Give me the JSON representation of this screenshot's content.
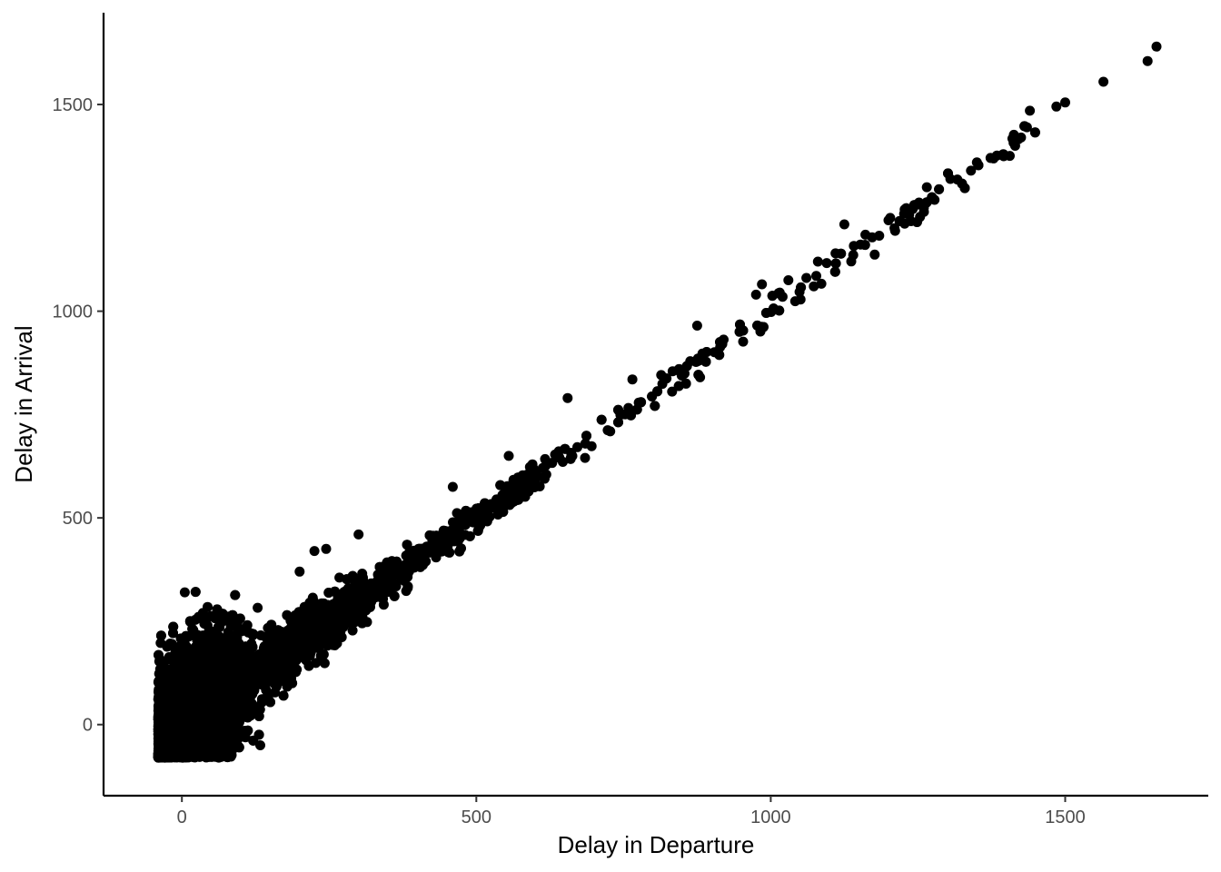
{
  "chart_data": {
    "type": "scatter",
    "title": "",
    "xlabel": "Delay in Departure",
    "ylabel": "Delay in Arrival",
    "xlim": [
      -133,
      1743
    ],
    "ylim": [
      -172,
      1722
    ],
    "x_ticks": [
      0,
      500,
      1000,
      1500
    ],
    "y_ticks": [
      0,
      500,
      1000,
      1500
    ],
    "x_tick_labels": [
      "0",
      "500",
      "1000",
      "1500"
    ],
    "y_tick_labels": [
      "0",
      "500",
      "1000",
      "1500"
    ],
    "grid": false,
    "legend": "none",
    "point_color": "#000000",
    "point_count_approx": 6000,
    "trend": {
      "slope": 1.0,
      "intercept": -5
    },
    "cluster_range_x": [
      -40,
      500
    ],
    "notable_points": [
      {
        "x": 1640,
        "y": 1605
      },
      {
        "x": 1655,
        "y": 1640
      },
      {
        "x": 1565,
        "y": 1555
      },
      {
        "x": 1500,
        "y": 1505
      },
      {
        "x": 1485,
        "y": 1495
      },
      {
        "x": 1440,
        "y": 1485
      },
      {
        "x": 1435,
        "y": 1445
      },
      {
        "x": 1425,
        "y": 1420
      },
      {
        "x": 1415,
        "y": 1400
      },
      {
        "x": 1395,
        "y": 1380
      },
      {
        "x": 1350,
        "y": 1360
      },
      {
        "x": 1340,
        "y": 1340
      },
      {
        "x": 1305,
        "y": 1320
      },
      {
        "x": 1265,
        "y": 1300
      },
      {
        "x": 1260,
        "y": 1250
      },
      {
        "x": 1230,
        "y": 1245
      },
      {
        "x": 1200,
        "y": 1220
      },
      {
        "x": 1125,
        "y": 1210
      },
      {
        "x": 1110,
        "y": 1140
      },
      {
        "x": 1080,
        "y": 1120
      },
      {
        "x": 1030,
        "y": 1075
      },
      {
        "x": 985,
        "y": 1065
      },
      {
        "x": 975,
        "y": 1040
      },
      {
        "x": 1020,
        "y": 1035
      },
      {
        "x": 875,
        "y": 965
      },
      {
        "x": 655,
        "y": 790
      },
      {
        "x": 555,
        "y": 650
      },
      {
        "x": 225,
        "y": 420
      },
      {
        "x": 245,
        "y": 425
      },
      {
        "x": 300,
        "y": 460
      },
      {
        "x": 5,
        "y": 320
      },
      {
        "x": 200,
        "y": 370
      },
      {
        "x": 460,
        "y": 575
      },
      {
        "x": 880,
        "y": 840
      },
      {
        "x": 765,
        "y": 835
      }
    ]
  }
}
